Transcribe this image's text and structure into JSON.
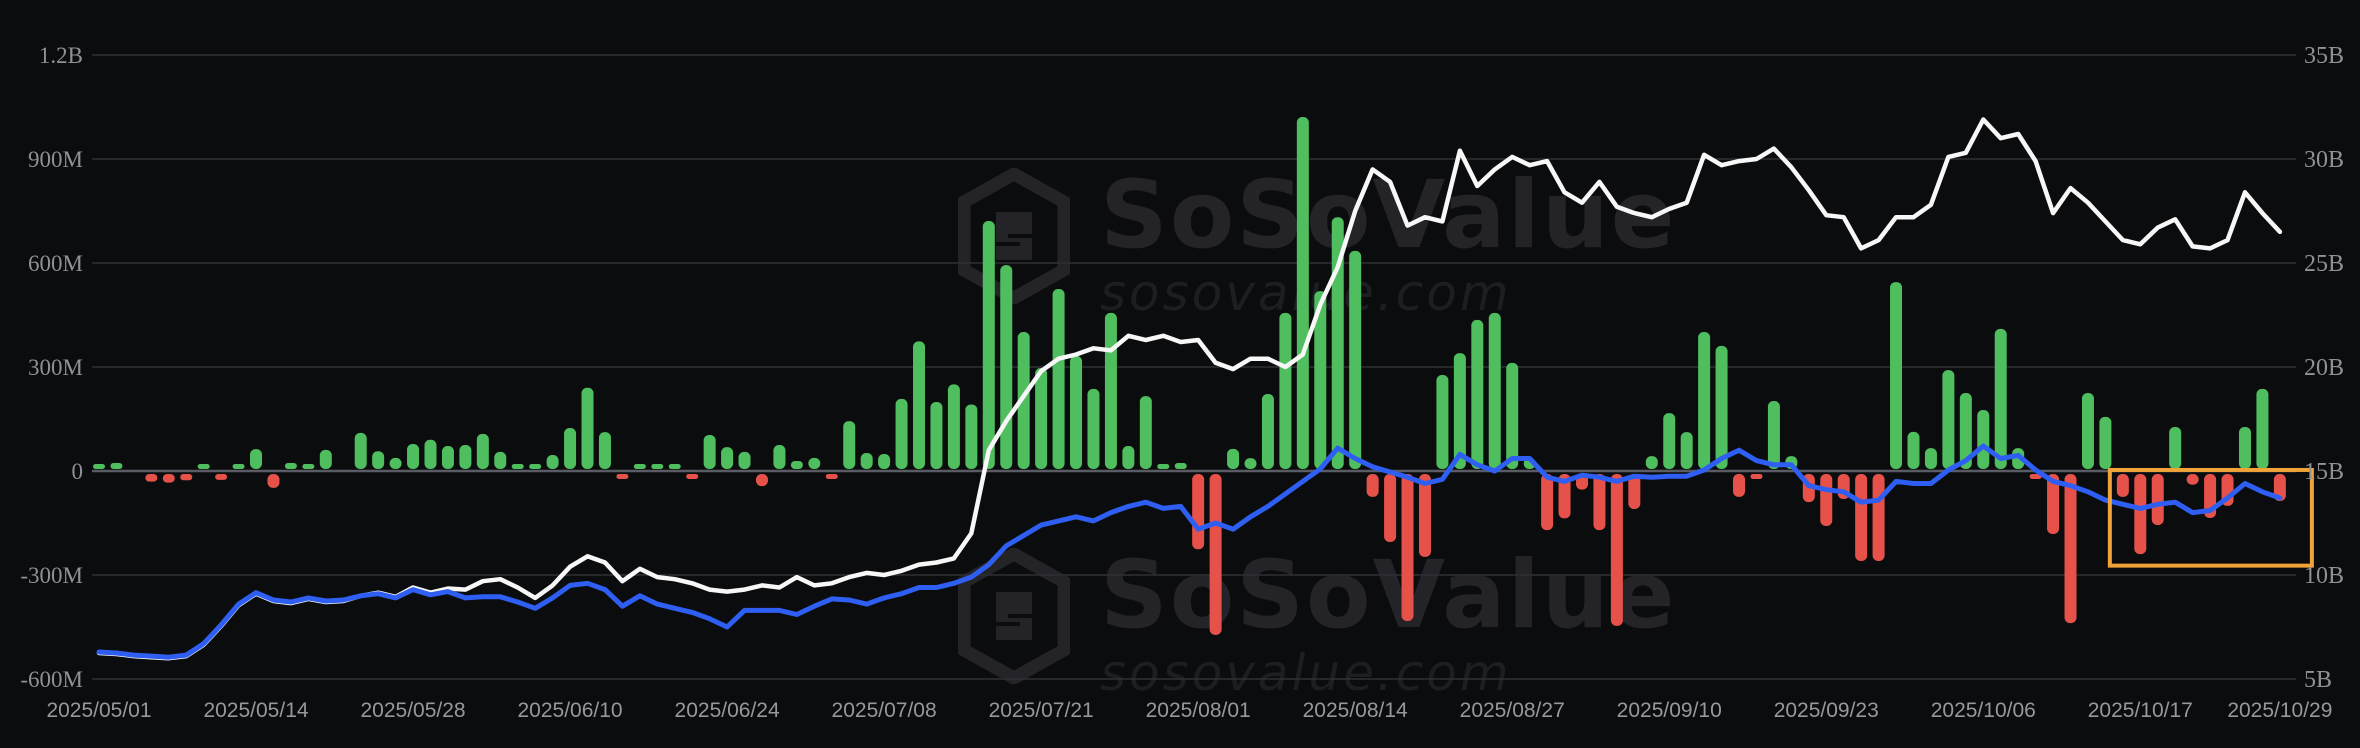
{
  "watermark": {
    "icon": "sosovalue-cube",
    "title": "SoSoValue",
    "subtitle": "sosovalue.com"
  },
  "colors": {
    "background": "#0b0c0e",
    "bar_positive": "#4fbe5f",
    "bar_negative": "#e6524a",
    "line_white": "#f7f7f8",
    "line_blue": "#2e5ff2",
    "highlight_box": "#f0a338",
    "gridline": "#2e3034",
    "zero_line": "#595d63",
    "axis_label": "#8f9196",
    "date_label": "#96989c",
    "watermark_title": "#232328",
    "watermark_subtitle": "#1d1e22"
  },
  "chart_data": {
    "type": "bar",
    "subtype": "combo-bar-with-two-lines",
    "grid": true,
    "legend": "none",
    "categories": [
      "2025/05/01",
      "2025/05/02",
      "2025/05/05",
      "2025/05/06",
      "2025/05/07",
      "2025/05/08",
      "2025/05/09",
      "2025/05/12",
      "2025/05/13",
      "2025/05/14",
      "2025/05/15",
      "2025/05/16",
      "2025/05/19",
      "2025/05/20",
      "2025/05/21",
      "2025/05/22",
      "2025/05/23",
      "2025/05/27",
      "2025/05/28",
      "2025/05/29",
      "2025/05/30",
      "2025/06/02",
      "2025/06/03",
      "2025/06/04",
      "2025/06/05",
      "2025/06/06",
      "2025/06/09",
      "2025/06/10",
      "2025/06/11",
      "2025/06/12",
      "2025/06/13",
      "2025/06/16",
      "2025/06/17",
      "2025/06/18",
      "2025/06/20",
      "2025/06/23",
      "2025/06/24",
      "2025/06/25",
      "2025/06/26",
      "2025/06/27",
      "2025/06/30",
      "2025/07/01",
      "2025/07/02",
      "2025/07/03",
      "2025/07/07",
      "2025/07/08",
      "2025/07/09",
      "2025/07/10",
      "2025/07/11",
      "2025/07/14",
      "2025/07/15",
      "2025/07/16",
      "2025/07/17",
      "2025/07/18",
      "2025/07/21",
      "2025/07/22",
      "2025/07/23",
      "2025/07/24",
      "2025/07/25",
      "2025/07/28",
      "2025/07/29",
      "2025/07/30",
      "2025/07/31",
      "2025/08/01",
      "2025/08/04",
      "2025/08/05",
      "2025/08/06",
      "2025/08/07",
      "2025/08/08",
      "2025/08/11",
      "2025/08/12",
      "2025/08/13",
      "2025/08/14",
      "2025/08/15",
      "2025/08/18",
      "2025/08/19",
      "2025/08/20",
      "2025/08/21",
      "2025/08/22",
      "2025/08/25",
      "2025/08/26",
      "2025/08/27",
      "2025/08/28",
      "2025/08/29",
      "2025/09/02",
      "2025/09/03",
      "2025/09/04",
      "2025/09/05",
      "2025/09/08",
      "2025/09/09",
      "2025/09/10",
      "2025/09/11",
      "2025/09/12",
      "2025/09/15",
      "2025/09/16",
      "2025/09/17",
      "2025/09/18",
      "2025/09/19",
      "2025/09/22",
      "2025/09/23",
      "2025/09/24",
      "2025/09/25",
      "2025/09/26",
      "2025/09/29",
      "2025/09/30",
      "2025/10/01",
      "2025/10/02",
      "2025/10/03",
      "2025/10/06",
      "2025/10/07",
      "2025/10/08",
      "2025/10/09",
      "2025/10/10",
      "2025/10/13",
      "2025/10/14",
      "2025/10/15",
      "2025/10/16",
      "2025/10/17",
      "2025/10/20",
      "2025/10/21",
      "2025/10/22",
      "2025/10/23",
      "2025/10/24",
      "2025/10/27",
      "2025/10/28",
      "2025/10/29"
    ],
    "series": [
      {
        "name": "daily-net-flow",
        "type": "bar",
        "axis": "left",
        "unit": "USD millions",
        "values": [
          8,
          23,
          0,
          -22,
          -25,
          -18,
          17,
          -17,
          11,
          63,
          -40,
          23,
          15,
          61,
          0,
          110,
          57,
          38,
          78,
          90,
          72,
          75,
          107,
          55,
          9,
          20,
          46,
          124,
          240,
          112,
          -5,
          20,
          10,
          12,
          -10,
          104,
          69,
          55,
          -35,
          75,
          29,
          38,
          -6,
          144,
          52,
          49,
          208,
          374,
          199,
          250,
          192,
          721,
          594,
          401,
          297,
          525,
          332,
          237,
          456,
          72,
          216,
          9,
          23,
          -217,
          -464,
          64,
          37,
          222,
          456,
          1021,
          519,
          732,
          635,
          -66,
          -196,
          -424,
          -239,
          277,
          340,
          436,
          456,
          312,
          37,
          -162,
          -128,
          -45,
          -162,
          -438,
          -101,
          43,
          167,
          112,
          401,
          361,
          -66,
          -10,
          202,
          43,
          -81,
          -150,
          -72,
          -251,
          -251,
          545,
          113,
          66,
          291,
          225,
          176,
          410,
          66,
          -8,
          -173,
          -430,
          225,
          156,
          -66,
          -231,
          -147,
          127,
          -31,
          -127,
          -92,
          127,
          237,
          -78
        ]
      },
      {
        "name": "white-line",
        "type": "line",
        "axis": "right",
        "unit": "USD billions",
        "values": [
          6.25,
          6.2,
          6.1,
          6.05,
          6.0,
          6.1,
          6.65,
          7.55,
          8.55,
          9.1,
          8.75,
          8.65,
          8.85,
          8.7,
          8.75,
          9.0,
          9.15,
          8.95,
          9.4,
          9.15,
          9.35,
          9.3,
          9.7,
          9.8,
          9.4,
          8.9,
          9.5,
          10.4,
          10.9,
          10.6,
          9.7,
          10.3,
          9.9,
          9.8,
          9.6,
          9.3,
          9.2,
          9.3,
          9.5,
          9.4,
          9.9,
          9.5,
          9.6,
          9.9,
          10.1,
          10.0,
          10.2,
          10.5,
          10.6,
          10.8,
          12.0,
          16.0,
          17.4,
          18.6,
          19.8,
          20.4,
          20.6,
          20.9,
          20.8,
          21.5,
          21.3,
          21.5,
          21.2,
          21.3,
          20.2,
          19.9,
          20.4,
          20.4,
          20.0,
          20.6,
          23.0,
          24.8,
          27.5,
          29.5,
          28.9,
          26.8,
          27.2,
          27.0,
          30.4,
          28.7,
          29.5,
          30.1,
          29.7,
          29.9,
          28.4,
          27.9,
          28.9,
          27.7,
          27.4,
          27.2,
          27.6,
          27.9,
          30.2,
          29.7,
          29.9,
          30.0,
          30.5,
          29.6,
          28.5,
          27.3,
          27.2,
          25.7,
          26.1,
          27.2,
          27.2,
          27.8,
          30.1,
          30.3,
          31.9,
          31.0,
          31.2,
          29.9,
          27.4,
          28.6,
          27.9,
          27.0,
          26.1,
          25.9,
          26.7,
          27.1,
          25.8,
          25.7,
          26.1,
          28.4,
          27.4,
          26.5
        ]
      },
      {
        "name": "blue-line",
        "type": "line",
        "axis": "right",
        "unit": "USD billions",
        "values": [
          6.3,
          6.25,
          6.15,
          6.1,
          6.05,
          6.15,
          6.7,
          7.6,
          8.6,
          9.15,
          8.8,
          8.7,
          8.9,
          8.75,
          8.8,
          9.0,
          9.1,
          8.9,
          9.3,
          9.05,
          9.2,
          8.9,
          8.95,
          8.95,
          8.7,
          8.4,
          8.9,
          9.5,
          9.6,
          9.3,
          8.5,
          9.0,
          8.6,
          8.4,
          8.2,
          7.9,
          7.5,
          8.3,
          8.3,
          8.3,
          8.1,
          8.5,
          8.85,
          8.8,
          8.6,
          8.9,
          9.1,
          9.4,
          9.4,
          9.6,
          9.9,
          10.5,
          11.4,
          11.9,
          12.4,
          12.6,
          12.8,
          12.6,
          13.0,
          13.3,
          13.5,
          13.2,
          13.3,
          12.2,
          12.5,
          12.2,
          12.8,
          13.3,
          13.9,
          14.5,
          15.1,
          16.1,
          15.6,
          15.2,
          14.95,
          14.7,
          14.4,
          14.6,
          15.8,
          15.3,
          15.0,
          15.6,
          15.6,
          14.7,
          14.5,
          14.8,
          14.7,
          14.5,
          14.75,
          14.7,
          14.75,
          14.75,
          15.05,
          15.6,
          16.0,
          15.5,
          15.3,
          15.3,
          14.3,
          14.1,
          14.0,
          13.5,
          13.6,
          14.5,
          14.4,
          14.4,
          15.05,
          15.5,
          16.2,
          15.6,
          15.75,
          15.05,
          14.5,
          14.3,
          14.0,
          13.6,
          13.4,
          13.2,
          13.4,
          13.5,
          13.0,
          13.1,
          13.7,
          14.4,
          14.0,
          13.7
        ]
      }
    ],
    "left_axis": {
      "ticks": [
        {
          "label": "1.2B",
          "value": 1200
        },
        {
          "label": "900M",
          "value": 900
        },
        {
          "label": "600M",
          "value": 600
        },
        {
          "label": "300M",
          "value": 300
        },
        {
          "label": "0",
          "value": 0
        },
        {
          "label": "-300M",
          "value": -300
        },
        {
          "label": "-600M",
          "value": -600
        }
      ],
      "range_musd": [
        -600,
        1200
      ]
    },
    "right_axis": {
      "ticks": [
        {
          "label": "35B",
          "value": 35
        },
        {
          "label": "30B",
          "value": 30
        },
        {
          "label": "25B",
          "value": 25
        },
        {
          "label": "20B",
          "value": 20
        },
        {
          "label": "15B",
          "value": 15
        },
        {
          "label": "10B",
          "value": 10
        },
        {
          "label": "5B",
          "value": 5
        }
      ],
      "range_busd": [
        5,
        35
      ]
    },
    "x_axis": {
      "tick_indices": [
        0,
        9,
        18,
        27,
        36,
        45,
        54,
        63,
        72,
        81,
        90,
        99,
        108,
        117,
        125
      ],
      "tick_labels": [
        "2025/05/01",
        "2025/05/14",
        "2025/05/28",
        "2025/06/10",
        "2025/06/24",
        "2025/07/08",
        "2025/07/21",
        "2025/08/01",
        "2025/08/14",
        "2025/08/27",
        "2025/09/10",
        "2025/09/23",
        "2025/10/06",
        "2025/10/17",
        "2025/10/29"
      ]
    },
    "highlight_box": {
      "start_date": "2025/10/16",
      "end_date": "2025/10/29",
      "y_top_busd": 15.05,
      "y_bottom_busd": 10.45
    }
  }
}
